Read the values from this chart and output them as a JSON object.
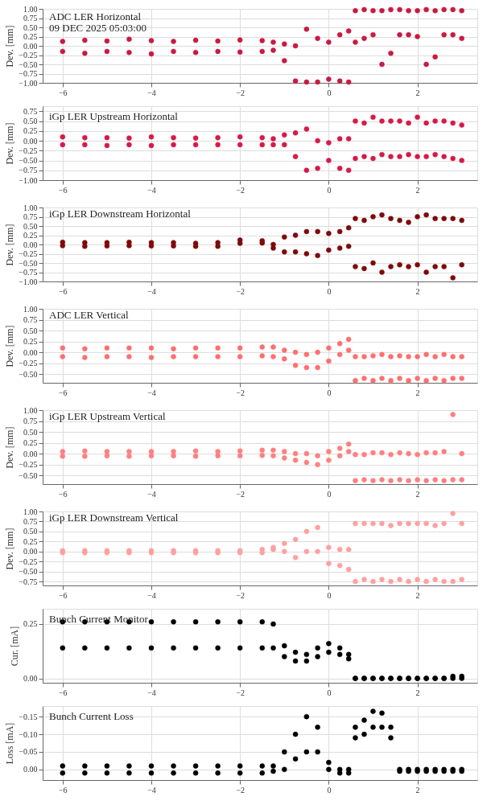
{
  "chart_data": [
    {
      "type": "scatter",
      "title": "ADC LER Horizontal",
      "subtitle": "09 DEC 2025 05:03:00",
      "ylabel": "Dev. [mm]",
      "color": "#c91a42",
      "marker": "circle",
      "grid": true,
      "xlim": [
        -6.45,
        3.35
      ],
      "xticks": [
        -6,
        -4,
        -2,
        0,
        2
      ],
      "ylim": [
        -1.0,
        1.0
      ],
      "yticks": [
        {
          "value": -1.0,
          "label": "−1.00"
        },
        {
          "value": -0.75,
          "label": "−0.75"
        },
        {
          "value": -0.5,
          "label": "−0.50"
        },
        {
          "value": -0.25,
          "label": "−0.25"
        },
        {
          "value": 0.0,
          "label": "0.00"
        },
        {
          "value": 0.25,
          "label": "0.25"
        },
        {
          "value": 0.5,
          "label": "0.50"
        },
        {
          "value": 0.75,
          "label": "0.75"
        },
        {
          "value": 1.0,
          "label": "1.00"
        }
      ],
      "x": [
        -6,
        -5.5,
        -5,
        -4.5,
        -4,
        -3.5,
        -3,
        -2.5,
        -2,
        -1.5,
        -1.25,
        -1,
        -0.75,
        -0.5,
        -0.25,
        0,
        0.25,
        0.45,
        0.6,
        0.8,
        1.0,
        1.2,
        1.4,
        1.6,
        1.8,
        2.0,
        2.2,
        2.4,
        2.6,
        2.8,
        3.0,
        -6,
        -5.5,
        -5,
        -4.5,
        -4,
        -3.5,
        -3,
        -2.5,
        -2,
        -1.5,
        -1.25,
        -1,
        -0.75,
        -0.5,
        -0.25,
        0,
        0.25,
        0.45,
        0.6,
        0.8,
        1.0,
        1.2,
        1.4,
        1.6,
        1.8,
        2.0,
        2.2,
        2.4,
        2.6,
        2.8,
        3.0
      ],
      "values": [
        0.12,
        0.15,
        0.13,
        0.18,
        0.14,
        0.12,
        0.15,
        0.13,
        0.16,
        0.14,
        0.1,
        0.05,
        0.0,
        0.45,
        0.2,
        0.1,
        0.3,
        0.4,
        0.95,
        0.98,
        0.95,
        0.95,
        0.98,
        0.98,
        0.95,
        0.95,
        0.98,
        0.95,
        0.98,
        0.98,
        0.95,
        -0.15,
        -0.2,
        -0.15,
        -0.18,
        -0.22,
        -0.15,
        -0.18,
        -0.15,
        -0.17,
        -0.15,
        -0.12,
        -0.4,
        -0.95,
        -0.98,
        -0.98,
        -0.9,
        -0.95,
        -0.98,
        0.1,
        0.2,
        0.3,
        -0.5,
        -0.2,
        0.3,
        0.3,
        0.25,
        -0.5,
        -0.3,
        0.3,
        0.3,
        0.2
      ]
    },
    {
      "type": "scatter",
      "title": "iGp LER Upstream Horizontal",
      "ylabel": "Dev. [mm]",
      "color": "#d61a46",
      "marker": "circle",
      "grid": true,
      "xlim": [
        -6.45,
        3.35
      ],
      "xticks": [
        -6,
        -4,
        -2,
        0,
        2
      ],
      "ylim": [
        -1.0,
        0.88
      ],
      "yticks": [
        {
          "value": -1.0,
          "label": "−1.00"
        },
        {
          "value": -0.75,
          "label": "−0.75"
        },
        {
          "value": -0.5,
          "label": "−0.50"
        },
        {
          "value": -0.25,
          "label": "−0.25"
        },
        {
          "value": 0.0,
          "label": "0.00"
        },
        {
          "value": 0.25,
          "label": "0.25"
        },
        {
          "value": 0.5,
          "label": "0.50"
        },
        {
          "value": 0.75,
          "label": "0.75"
        }
      ],
      "x": [
        -6,
        -5.5,
        -5,
        -4.5,
        -4,
        -3.5,
        -3,
        -2.5,
        -2,
        -1.5,
        -1.25,
        -1,
        -0.75,
        -0.5,
        -0.25,
        0,
        0.25,
        0.45,
        0.6,
        0.8,
        1.0,
        1.2,
        1.4,
        1.6,
        1.8,
        2.0,
        2.2,
        2.4,
        2.6,
        2.8,
        3.0,
        -6,
        -5.5,
        -5,
        -4.5,
        -4,
        -3.5,
        -3,
        -2.5,
        -2,
        -1.5,
        -1.25,
        -1,
        -0.75,
        -0.5,
        -0.25,
        0,
        0.25,
        0.45,
        0.6,
        0.8,
        1.0,
        1.2,
        1.4,
        1.6,
        1.8,
        2.0,
        2.2,
        2.4,
        2.6,
        2.8,
        3.0
      ],
      "values": [
        0.1,
        0.08,
        0.08,
        0.07,
        0.1,
        0.08,
        0.07,
        0.08,
        0.1,
        0.08,
        0.05,
        0.15,
        0.2,
        0.3,
        0.0,
        -0.05,
        0.05,
        0.05,
        0.5,
        0.45,
        0.6,
        0.5,
        0.5,
        0.5,
        0.45,
        0.6,
        0.45,
        0.5,
        0.5,
        0.45,
        0.4,
        -0.1,
        -0.1,
        -0.12,
        -0.1,
        -0.12,
        -0.1,
        -0.1,
        -0.1,
        -0.1,
        -0.1,
        -0.1,
        -0.1,
        -0.4,
        -0.75,
        -0.7,
        -0.5,
        -0.7,
        -0.75,
        -0.45,
        -0.4,
        -0.45,
        -0.35,
        -0.4,
        -0.4,
        -0.35,
        -0.4,
        -0.4,
        -0.35,
        -0.4,
        -0.45,
        -0.5
      ]
    },
    {
      "type": "scatter",
      "title": "iGp LER Downstream Horizontal",
      "ylabel": "Dev. [mm]",
      "color": "#7f0a0a",
      "marker": "circle",
      "grid": true,
      "xlim": [
        -6.45,
        3.35
      ],
      "xticks": [
        -6,
        -4,
        -2,
        0,
        2
      ],
      "ylim": [
        -1.0,
        1.0
      ],
      "yticks": [
        {
          "value": -1.0,
          "label": "−1.00"
        },
        {
          "value": -0.75,
          "label": "−0.75"
        },
        {
          "value": -0.5,
          "label": "−0.50"
        },
        {
          "value": -0.25,
          "label": "−0.25"
        },
        {
          "value": 0.0,
          "label": "0.00"
        },
        {
          "value": 0.25,
          "label": "0.25"
        },
        {
          "value": 0.5,
          "label": "0.50"
        },
        {
          "value": 0.75,
          "label": "0.75"
        },
        {
          "value": 1.0,
          "label": "1.00"
        }
      ],
      "x": [
        -6,
        -5.5,
        -5,
        -4.5,
        -4,
        -3.5,
        -3,
        -2.5,
        -2,
        -1.5,
        -1.25,
        -1,
        -0.75,
        -0.5,
        -0.25,
        0,
        0.25,
        0.45,
        0.6,
        0.8,
        1.0,
        1.2,
        1.4,
        1.6,
        1.8,
        2.0,
        2.2,
        2.4,
        2.6,
        2.8,
        3.0,
        -6,
        -5.5,
        -5,
        -4.5,
        -4,
        -3.5,
        -3,
        -2.5,
        -2,
        -1.5,
        -1.25,
        -1,
        -0.75,
        -0.5,
        -0.25,
        0,
        0.25,
        0.45,
        0.6,
        0.8,
        1.0,
        1.2,
        1.4,
        1.6,
        1.8,
        2.0,
        2.2,
        2.4,
        2.6,
        2.8,
        3.0
      ],
      "values": [
        0.06,
        0.05,
        0.05,
        0.06,
        0.05,
        0.05,
        0.03,
        0.05,
        0.12,
        0.1,
        0.0,
        0.2,
        0.25,
        0.35,
        0.35,
        0.3,
        0.35,
        0.45,
        0.7,
        0.65,
        0.75,
        0.8,
        0.7,
        0.65,
        0.6,
        0.75,
        0.8,
        0.7,
        0.7,
        0.7,
        0.65,
        -0.03,
        -0.05,
        -0.04,
        -0.03,
        -0.04,
        -0.04,
        -0.05,
        -0.05,
        0.03,
        0.04,
        -0.1,
        -0.2,
        -0.2,
        -0.25,
        -0.3,
        -0.15,
        -0.1,
        -0.05,
        -0.6,
        -0.65,
        -0.5,
        -0.75,
        -0.6,
        -0.55,
        -0.6,
        -0.55,
        -0.75,
        -0.6,
        -0.6,
        -0.9,
        -0.55
      ]
    },
    {
      "type": "scatter",
      "title": "ADC LER Vertical",
      "ylabel": "Dev. [mm]",
      "color": "#ff7070",
      "marker": "circle",
      "grid": true,
      "xlim": [
        -6.45,
        3.35
      ],
      "xticks": [
        -6,
        -4,
        -2,
        0,
        2
      ],
      "ylim": [
        -0.7,
        1.0
      ],
      "yticks": [
        {
          "value": -0.5,
          "label": "−0.50"
        },
        {
          "value": -0.25,
          "label": "−0.25"
        },
        {
          "value": 0.0,
          "label": "0.00"
        },
        {
          "value": 0.25,
          "label": "0.25"
        },
        {
          "value": 0.5,
          "label": "0.50"
        },
        {
          "value": 0.75,
          "label": "0.75"
        },
        {
          "value": 1.0,
          "label": "1.00"
        }
      ],
      "x": [
        -6,
        -5.5,
        -5,
        -4.5,
        -4,
        -3.5,
        -3,
        -2.5,
        -2,
        -1.5,
        -1.25,
        -1,
        -0.75,
        -0.5,
        -0.25,
        0,
        0.25,
        0.45,
        0.6,
        0.8,
        1.0,
        1.2,
        1.4,
        1.6,
        1.8,
        2.0,
        2.2,
        2.4,
        2.6,
        2.8,
        3.0,
        -6,
        -5.5,
        -5,
        -4.5,
        -4,
        -3.5,
        -3,
        -2.5,
        -2,
        -1.5,
        -1.25,
        -1,
        -0.75,
        -0.5,
        -0.25,
        0,
        0.25,
        0.45,
        0.6,
        0.8,
        1.0,
        1.2,
        1.4,
        1.6,
        1.8,
        2.0,
        2.2,
        2.4,
        2.6,
        2.8,
        3.0
      ],
      "values": [
        0.1,
        0.08,
        0.1,
        0.1,
        0.1,
        0.08,
        0.1,
        0.1,
        0.1,
        0.12,
        0.12,
        0.05,
        0.0,
        -0.05,
        0.0,
        0.1,
        0.2,
        0.3,
        -0.1,
        -0.1,
        -0.08,
        -0.05,
        -0.1,
        -0.08,
        -0.1,
        -0.1,
        -0.05,
        -0.1,
        -0.05,
        -0.1,
        -0.1,
        -0.1,
        -0.12,
        -0.1,
        -0.1,
        -0.12,
        -0.1,
        -0.1,
        -0.1,
        -0.1,
        -0.08,
        -0.1,
        -0.15,
        -0.3,
        -0.35,
        -0.35,
        -0.2,
        -0.05,
        0.05,
        -0.65,
        -0.6,
        -0.65,
        -0.6,
        -0.65,
        -0.6,
        -0.65,
        -0.6,
        -0.65,
        -0.6,
        -0.65,
        -0.6,
        -0.6
      ]
    },
    {
      "type": "scatter",
      "title": "iGp LER Upstream Vertical",
      "ylabel": "Dev. [mm]",
      "color": "#ff8080",
      "marker": "circle",
      "grid": true,
      "xlim": [
        -6.45,
        3.35
      ],
      "xticks": [
        -6,
        -4,
        -2,
        0,
        2
      ],
      "ylim": [
        -0.7,
        1.0
      ],
      "yticks": [
        {
          "value": -0.5,
          "label": "−0.50"
        },
        {
          "value": -0.25,
          "label": "−0.25"
        },
        {
          "value": 0.0,
          "label": "0.00"
        },
        {
          "value": 0.25,
          "label": "0.25"
        },
        {
          "value": 0.5,
          "label": "0.50"
        },
        {
          "value": 0.75,
          "label": "0.75"
        },
        {
          "value": 1.0,
          "label": "1.00"
        }
      ],
      "x": [
        -6,
        -5.5,
        -5,
        -4.5,
        -4,
        -3.5,
        -3,
        -2.5,
        -2,
        -1.5,
        -1.25,
        -1,
        -0.75,
        -0.5,
        -0.25,
        0,
        0.25,
        0.45,
        0.6,
        0.8,
        1.0,
        1.2,
        1.4,
        1.6,
        1.8,
        2.0,
        2.2,
        2.4,
        2.6,
        2.8,
        3.0,
        -6,
        -5.5,
        -5,
        -4.5,
        -4,
        -3.5,
        -3,
        -2.5,
        -2,
        -1.5,
        -1.25,
        -1,
        -0.75,
        -0.5,
        -0.25,
        0,
        0.25,
        0.45,
        0.6,
        0.8,
        1.0,
        1.2,
        1.4,
        1.6,
        1.8,
        2.0,
        2.2,
        2.4,
        2.6,
        2.8,
        3.0
      ],
      "values": [
        0.05,
        0.06,
        0.05,
        0.05,
        0.05,
        0.05,
        0.06,
        0.05,
        0.06,
        0.08,
        0.08,
        0.05,
        0.0,
        0.0,
        -0.05,
        0.05,
        0.12,
        0.22,
        -0.02,
        -0.02,
        0.02,
        0.02,
        -0.02,
        0.02,
        0.0,
        -0.02,
        0.02,
        0.02,
        0.05,
        0.9,
        0.0,
        -0.06,
        -0.06,
        -0.05,
        -0.06,
        -0.05,
        -0.05,
        -0.06,
        -0.05,
        -0.05,
        -0.04,
        -0.05,
        -0.1,
        -0.15,
        -0.2,
        -0.25,
        -0.15,
        -0.05,
        0.05,
        -0.62,
        -0.6,
        -0.62,
        -0.6,
        -0.62,
        -0.6,
        -0.62,
        -0.6,
        -0.62,
        -0.6,
        -0.62,
        -0.6,
        -0.6
      ]
    },
    {
      "type": "scatter",
      "title": "iGp LER Downstream Vertical",
      "ylabel": "Dev. [mm]",
      "color": "#ffa0a0",
      "marker": "circle",
      "grid": true,
      "xlim": [
        -6.45,
        3.35
      ],
      "xticks": [
        -6,
        -4,
        -2,
        0,
        2
      ],
      "ylim": [
        -0.85,
        1.0
      ],
      "yticks": [
        {
          "value": -0.75,
          "label": "−0.75"
        },
        {
          "value": -0.5,
          "label": "−0.50"
        },
        {
          "value": -0.25,
          "label": "−0.25"
        },
        {
          "value": 0.0,
          "label": "0.00"
        },
        {
          "value": 0.25,
          "label": "0.25"
        },
        {
          "value": 0.5,
          "label": "0.50"
        },
        {
          "value": 0.75,
          "label": "0.75"
        },
        {
          "value": 1.0,
          "label": "1.00"
        }
      ],
      "x": [
        -6,
        -5.5,
        -5,
        -4.5,
        -4,
        -3.5,
        -3,
        -2.5,
        -2,
        -1.5,
        -1.25,
        -1,
        -0.75,
        -0.5,
        -0.25,
        0,
        0.25,
        0.45,
        0.6,
        0.8,
        1.0,
        1.2,
        1.4,
        1.6,
        1.8,
        2.0,
        2.2,
        2.4,
        2.6,
        2.8,
        3.0,
        -6,
        -5.5,
        -5,
        -4.5,
        -4,
        -3.5,
        -3,
        -2.5,
        -2,
        -1.5,
        -1.25,
        -1,
        -0.75,
        -0.5,
        -0.25,
        0,
        0.25,
        0.45,
        0.6,
        0.8,
        1.0,
        1.2,
        1.4,
        1.6,
        1.8,
        2.0,
        2.2,
        2.4,
        2.6,
        2.8,
        3.0
      ],
      "values": [
        0.02,
        0.02,
        0.02,
        0.02,
        0.02,
        0.02,
        0.02,
        0.02,
        0.02,
        0.05,
        0.1,
        0.2,
        0.3,
        0.5,
        0.6,
        0.1,
        0.05,
        0.05,
        0.7,
        0.7,
        0.7,
        0.7,
        0.65,
        0.7,
        0.7,
        0.7,
        0.7,
        0.65,
        0.7,
        0.95,
        0.7,
        -0.03,
        -0.03,
        -0.03,
        -0.03,
        -0.03,
        -0.03,
        -0.03,
        -0.03,
        -0.03,
        -0.03,
        0.05,
        0.0,
        -0.15,
        0.0,
        0.0,
        -0.3,
        -0.35,
        -0.45,
        -0.75,
        -0.7,
        -0.75,
        -0.7,
        -0.75,
        -0.7,
        -0.75,
        -0.7,
        -0.75,
        -0.7,
        -0.75,
        -0.75,
        -0.7
      ]
    },
    {
      "type": "scatter",
      "title": "Bunch Current Monitor",
      "ylabel": "Cur. [mA]",
      "color": "#000000",
      "marker": "circle",
      "grid": true,
      "xlim": [
        -6.45,
        3.35
      ],
      "xticks": [
        -6,
        -4,
        -2,
        0,
        2
      ],
      "ylim": [
        -0.02,
        0.32
      ],
      "yticks": [
        {
          "value": 0.0,
          "label": "0.00"
        },
        0.25
      ],
      "x": [
        -6,
        -5.5,
        -5,
        -4.5,
        -4,
        -3.5,
        -3,
        -2.5,
        -2,
        -1.5,
        -1.25,
        -1,
        -0.75,
        -0.5,
        -0.25,
        0,
        0.25,
        0.45,
        0.6,
        0.8,
        1.0,
        1.2,
        1.4,
        1.6,
        1.8,
        2.0,
        2.2,
        2.4,
        2.6,
        2.8,
        3.0,
        -6,
        -5.5,
        -5,
        -4.5,
        -4,
        -3.5,
        -3,
        -2.5,
        -2,
        -1.5,
        -1.25,
        -1,
        -0.75,
        -0.5,
        -0.25,
        0,
        0.25,
        0.45,
        0.6,
        0.8,
        1.0,
        1.2,
        1.4,
        1.6,
        1.8,
        2.0,
        2.2,
        2.4,
        2.6,
        2.8,
        3.0
      ],
      "values": [
        0.26,
        0.26,
        0.26,
        0.26,
        0.26,
        0.26,
        0.26,
        0.26,
        0.26,
        0.26,
        0.25,
        0.15,
        0.12,
        0.11,
        0.14,
        0.16,
        0.14,
        0.11,
        0.0,
        0.0,
        0.0,
        0.0,
        0.0,
        0.0,
        0.0,
        0.0,
        0.0,
        0.0,
        0.0,
        0.01,
        0.01,
        0.14,
        0.14,
        0.14,
        0.14,
        0.14,
        0.14,
        0.14,
        0.14,
        0.14,
        0.14,
        0.14,
        0.1,
        0.08,
        0.08,
        0.1,
        0.12,
        0.11,
        0.09,
        0.0,
        0.0,
        0.0,
        0.0,
        0.0,
        0.0,
        0.0,
        0.0,
        0.0,
        0.0,
        0.0,
        0.0,
        0.0
      ]
    },
    {
      "type": "scatter",
      "title": "Bunch Current Loss",
      "ylabel": "Loss [mA]",
      "color": "#000000",
      "marker": "circle",
      "grid": true,
      "xlim": [
        -6.45,
        3.35
      ],
      "xticks": [
        -6,
        -4,
        -2,
        0,
        2
      ],
      "ylim": [
        0.03,
        -0.18
      ],
      "yticks": [
        {
          "value": 0.0,
          "label": "0.00"
        },
        {
          "value": -0.05,
          "label": "−0.05"
        },
        {
          "value": -0.1,
          "label": "−0.10"
        },
        {
          "value": -0.15,
          "label": "−0.15"
        }
      ],
      "x": [
        -6,
        -5.5,
        -5,
        -4.5,
        -4,
        -3.5,
        -3,
        -2.5,
        -2,
        -1.5,
        -1.25,
        -1,
        -0.75,
        -0.5,
        -0.25,
        0,
        0.25,
        0.45,
        0.6,
        0.8,
        1.0,
        1.2,
        1.4,
        1.6,
        1.8,
        2.0,
        2.2,
        2.4,
        2.6,
        2.8,
        3.0,
        -6,
        -5.5,
        -5,
        -4.5,
        -4,
        -3.5,
        -3,
        -2.5,
        -2,
        -1.5,
        -1.25,
        -1,
        -0.75,
        -0.5,
        -0.25,
        0,
        0.25,
        0.45,
        0.6,
        0.8,
        1.0,
        1.2,
        1.4,
        1.6,
        1.8,
        2.0,
        2.2,
        2.4,
        2.6,
        2.8,
        3.0
      ],
      "values": [
        -0.01,
        -0.01,
        -0.01,
        -0.01,
        -0.01,
        -0.01,
        -0.01,
        -0.01,
        -0.01,
        -0.01,
        -0.01,
        -0.05,
        -0.1,
        -0.15,
        -0.12,
        -0.02,
        0.0,
        0.0,
        -0.12,
        -0.14,
        -0.165,
        -0.16,
        -0.12,
        0.0,
        0.0,
        0.0,
        0.0,
        0.0,
        0.0,
        0.0,
        0.0,
        0.01,
        0.01,
        0.01,
        0.01,
        0.01,
        0.01,
        0.01,
        0.01,
        0.01,
        0.01,
        0.005,
        0.0,
        -0.03,
        -0.05,
        -0.05,
        0.0,
        0.01,
        0.01,
        -0.09,
        -0.1,
        -0.12,
        -0.12,
        -0.09,
        0.005,
        0.005,
        0.005,
        0.005,
        0.005,
        0.005,
        0.005,
        0.005
      ]
    }
  ]
}
